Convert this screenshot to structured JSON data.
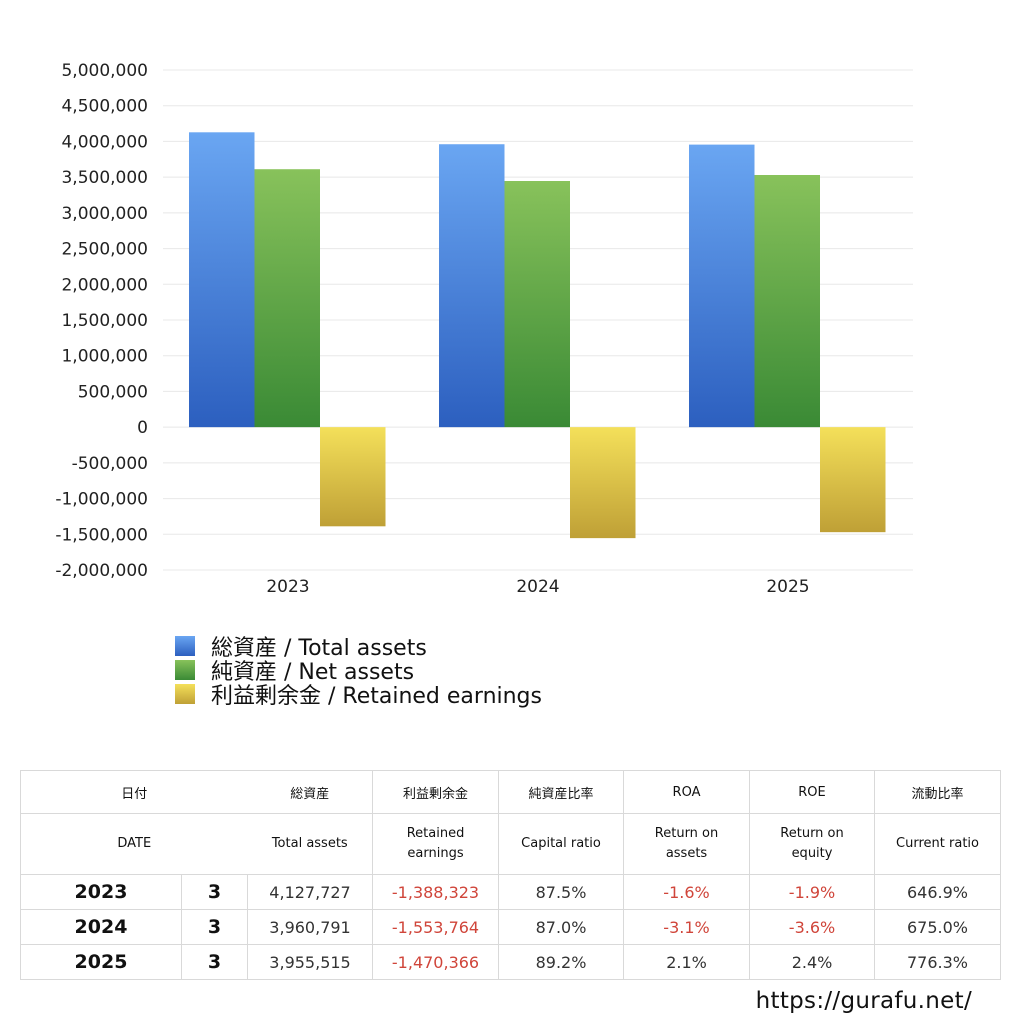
{
  "chart_data": {
    "type": "bar",
    "categories": [
      "2023",
      "2024",
      "2025"
    ],
    "series": [
      {
        "name": "総資産 / Total assets",
        "values": [
          4127727,
          3960791,
          3955515
        ],
        "color_top": "#6aa6f2",
        "color_bottom": "#2c5fbf"
      },
      {
        "name": "純資産 / Net assets",
        "values": [
          3611000,
          3446000,
          3530000
        ],
        "color_top": "#88c25b",
        "color_bottom": "#3a8a35"
      },
      {
        "name": "利益剰余金 / Retained earnings",
        "values": [
          -1388323,
          -1553764,
          -1470366
        ],
        "color_top": "#f4e05a",
        "color_bottom": "#bfa036"
      }
    ],
    "ylim": [
      -2000000,
      5000000
    ],
    "yticks": [
      5000000,
      4500000,
      4000000,
      3500000,
      3000000,
      2500000,
      2000000,
      1500000,
      1000000,
      500000,
      0,
      -500000,
      -1000000,
      -1500000,
      -2000000
    ],
    "ytick_labels": [
      "5,000,000",
      "4,500,000",
      "4,000,000",
      "3,500,000",
      "3,000,000",
      "2,500,000",
      "2,000,000",
      "1,500,000",
      "1,000,000",
      "500,000",
      "0",
      "-500,000",
      "-1,000,000",
      "-1,500,000",
      "-2,000,000"
    ],
    "grid": true,
    "legend_placement": "bottom-left"
  },
  "table": {
    "headers_jp": [
      "日付",
      "",
      "総資産",
      "利益剰余金",
      "純資産比率",
      "ROA",
      "ROE",
      "流動比率"
    ],
    "headers_en": [
      "DATE",
      "",
      "Total assets",
      "Retained\nearnings",
      "Capital ratio",
      "Return on\nassets",
      "Return on\nequity",
      "Current ratio"
    ],
    "rows": [
      {
        "year": "2023",
        "month": "3",
        "total_assets": "4,127,727",
        "retained": "-1,388,323",
        "capital_ratio": "87.5%",
        "roa": "-1.6%",
        "roe": "-1.9%",
        "current_ratio": "646.9%"
      },
      {
        "year": "2024",
        "month": "3",
        "total_assets": "3,960,791",
        "retained": "-1,553,764",
        "capital_ratio": "87.0%",
        "roa": "-3.1%",
        "roe": "-3.6%",
        "current_ratio": "675.0%"
      },
      {
        "year": "2025",
        "month": "3",
        "total_assets": "3,955,515",
        "retained": "-1,470,366",
        "capital_ratio": "89.2%",
        "roa": "2.1%",
        "roe": "2.4%",
        "current_ratio": "776.3%"
      }
    ],
    "negative_color": "#d0453a"
  },
  "footer": {
    "url": "https://gurafu.net/"
  }
}
